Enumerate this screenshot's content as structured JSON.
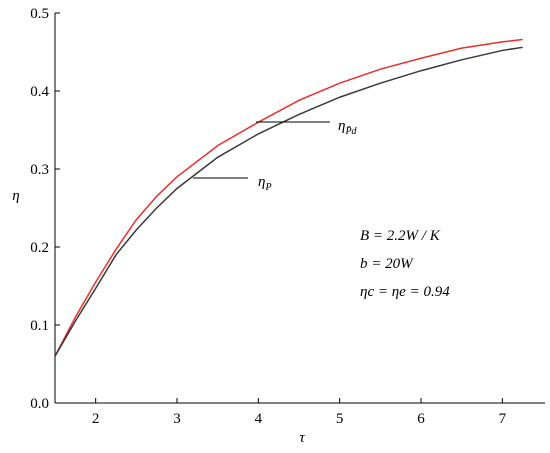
{
  "chart_data": {
    "type": "line",
    "x_label": "τ",
    "y_label": "η",
    "x": [
      1.5,
      1.75,
      2,
      2.25,
      2.5,
      2.75,
      3,
      3.5,
      4,
      4.5,
      5,
      5.5,
      6,
      6.5,
      7,
      7.25
    ],
    "series": [
      {
        "name": "η",
        "subscript": "P̄d",
        "color": "#e8302a",
        "values": [
          0.06,
          0.11,
          0.155,
          0.197,
          0.235,
          0.265,
          0.29,
          0.33,
          0.36,
          0.388,
          0.41,
          0.428,
          0.442,
          0.455,
          0.463,
          0.466
        ]
      },
      {
        "name": "η",
        "subscript": "P",
        "color": "#3a3a3a",
        "values": [
          0.06,
          0.105,
          0.147,
          0.19,
          0.222,
          0.25,
          0.275,
          0.315,
          0.345,
          0.37,
          0.392,
          0.41,
          0.426,
          0.44,
          0.452,
          0.456
        ]
      }
    ],
    "xlim": [
      1.5,
      7.5
    ],
    "ylim": [
      0,
      0.5
    ],
    "xticks": [
      2,
      3,
      4,
      5,
      6,
      7
    ],
    "yticks": [
      {
        "value": 0,
        "label": "0.0"
      },
      0.1,
      0.2,
      0.3,
      0.4,
      0.5
    ],
    "annotations": [
      "B = 2.2W / K",
      "b = 20W",
      "ηc = ηe = 0.94"
    ]
  }
}
